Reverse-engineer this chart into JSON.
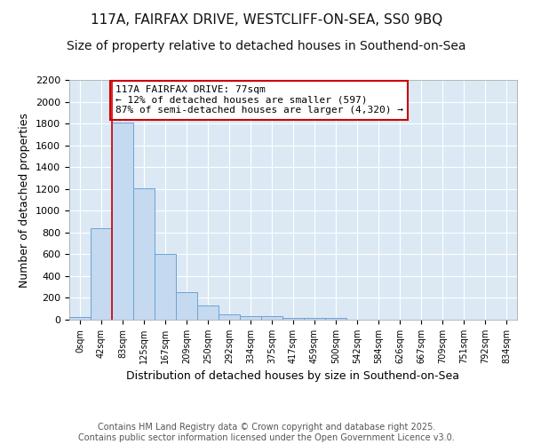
{
  "title_line1": "117A, FAIRFAX DRIVE, WESTCLIFF-ON-SEA, SS0 9BQ",
  "title_line2": "Size of property relative to detached houses in Southend-on-Sea",
  "xlabel": "Distribution of detached houses by size in Southend-on-Sea",
  "ylabel": "Number of detached properties",
  "bar_labels": [
    "0sqm",
    "42sqm",
    "83sqm",
    "125sqm",
    "167sqm",
    "209sqm",
    "250sqm",
    "292sqm",
    "334sqm",
    "375sqm",
    "417sqm",
    "459sqm",
    "500sqm",
    "542sqm",
    "584sqm",
    "626sqm",
    "667sqm",
    "709sqm",
    "751sqm",
    "792sqm",
    "834sqm"
  ],
  "bar_values": [
    25,
    840,
    1810,
    1210,
    600,
    255,
    130,
    50,
    35,
    30,
    20,
    15,
    15,
    0,
    0,
    0,
    0,
    0,
    0,
    0,
    0
  ],
  "bar_color": "#c5d9f0",
  "bar_edge_color": "#6ba3d6",
  "annotation_box_text": "117A FAIRFAX DRIVE: 77sqm\n← 12% of detached houses are smaller (597)\n87% of semi-detached houses are larger (4,320) →",
  "annotation_box_color": "#ffffff",
  "annotation_box_edge_color": "#cc0000",
  "vline_x": 2.0,
  "vline_color": "#cc0000",
  "ylim": [
    0,
    2200
  ],
  "yticks": [
    0,
    200,
    400,
    600,
    800,
    1000,
    1200,
    1400,
    1600,
    1800,
    2000,
    2200
  ],
  "fig_background": "#ffffff",
  "plot_background": "#dce9f5",
  "footer_text": "Contains HM Land Registry data © Crown copyright and database right 2025.\nContains public sector information licensed under the Open Government Licence v3.0.",
  "title_fontsize": 11,
  "subtitle_fontsize": 10,
  "axis_label_fontsize": 9,
  "tick_fontsize": 8,
  "footer_fontsize": 7
}
